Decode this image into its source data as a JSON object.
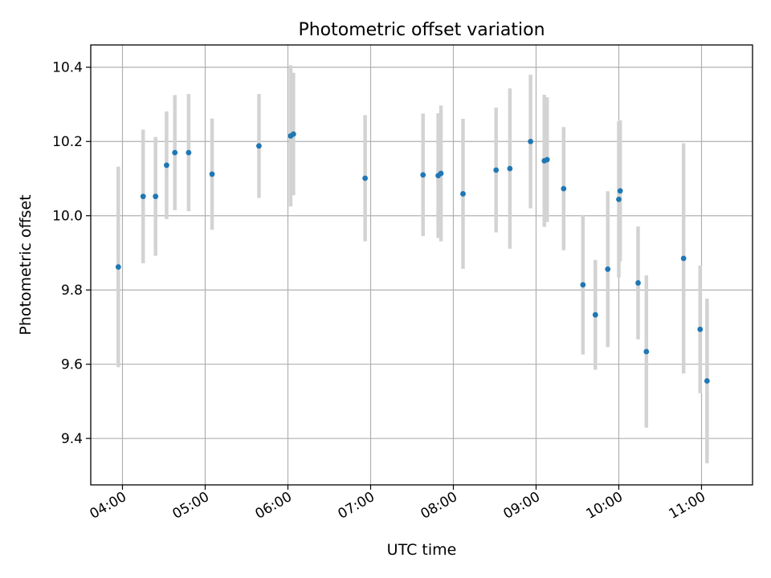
{
  "chart_data": {
    "type": "scatter",
    "title": "Photometric offset variation",
    "xlabel": "UTC time",
    "ylabel": "Photometric offset",
    "x_axis_type": "time",
    "xlim": [
      "03:37",
      "11:37"
    ],
    "ylim": [
      9.275,
      10.46
    ],
    "grid": true,
    "legend": "none",
    "x_ticks": [
      "04:00",
      "05:00",
      "06:00",
      "07:00",
      "08:00",
      "09:00",
      "10:00",
      "11:00"
    ],
    "y_ticks": [
      9.4,
      9.6,
      9.8,
      10.0,
      10.2,
      10.4
    ],
    "y_tick_labels": [
      "9.4",
      "9.6",
      "9.8",
      "10.0",
      "10.2",
      "10.4"
    ],
    "colors": {
      "marker": "#1f77b4",
      "errorbar": "#d3d3d3",
      "grid": "#b0b0b0"
    },
    "series": [
      {
        "points": [
          {
            "x": "03:57",
            "y": 9.862,
            "yerr": 0.27
          },
          {
            "x": "04:15",
            "y": 10.052,
            "yerr": 0.18
          },
          {
            "x": "04:24",
            "y": 10.052,
            "yerr": 0.16
          },
          {
            "x": "04:32",
            "y": 10.136,
            "yerr": 0.145
          },
          {
            "x": "04:38",
            "y": 10.17,
            "yerr": 0.155
          },
          {
            "x": "04:48",
            "y": 10.17,
            "yerr": 0.158
          },
          {
            "x": "05:05",
            "y": 10.112,
            "yerr": 0.15
          },
          {
            "x": "05:39",
            "y": 10.188,
            "yerr": 0.14
          },
          {
            "x": "06:02",
            "y": 10.215,
            "yerr": 0.19
          },
          {
            "x": "06:04",
            "y": 10.22,
            "yerr": 0.165
          },
          {
            "x": "06:56",
            "y": 10.101,
            "yerr": 0.17
          },
          {
            "x": "07:38",
            "y": 10.11,
            "yerr": 0.165
          },
          {
            "x": "07:49",
            "y": 10.108,
            "yerr": 0.168
          },
          {
            "x": "07:51",
            "y": 10.114,
            "yerr": 0.183
          },
          {
            "x": "08:07",
            "y": 10.059,
            "yerr": 0.202
          },
          {
            "x": "08:31",
            "y": 10.123,
            "yerr": 0.168
          },
          {
            "x": "08:41",
            "y": 10.127,
            "yerr": 0.216
          },
          {
            "x": "08:56",
            "y": 10.2,
            "yerr": 0.18
          },
          {
            "x": "09:06",
            "y": 10.148,
            "yerr": 0.178
          },
          {
            "x": "09:08",
            "y": 10.151,
            "yerr": 0.168
          },
          {
            "x": "09:20",
            "y": 10.073,
            "yerr": 0.166
          },
          {
            "x": "09:34",
            "y": 9.814,
            "yerr": 0.188
          },
          {
            "x": "09:43",
            "y": 9.733,
            "yerr": 0.148
          },
          {
            "x": "09:52",
            "y": 9.856,
            "yerr": 0.21
          },
          {
            "x": "10:00",
            "y": 10.044,
            "yerr": 0.21
          },
          {
            "x": "10:01",
            "y": 10.067,
            "yerr": 0.19
          },
          {
            "x": "10:14",
            "y": 9.819,
            "yerr": 0.152
          },
          {
            "x": "10:20",
            "y": 9.634,
            "yerr": 0.205
          },
          {
            "x": "10:47",
            "y": 9.885,
            "yerr": 0.31
          },
          {
            "x": "10:59",
            "y": 9.694,
            "yerr": 0.172
          },
          {
            "x": "11:04",
            "y": 9.555,
            "yerr": 0.222
          }
        ]
      }
    ]
  }
}
